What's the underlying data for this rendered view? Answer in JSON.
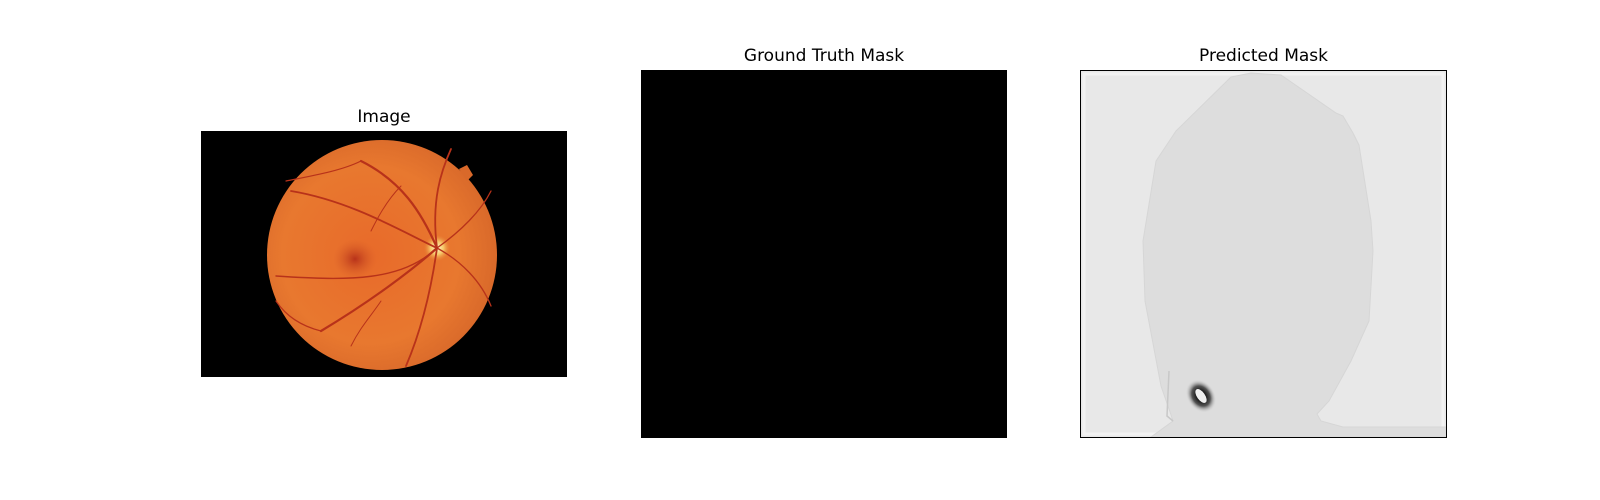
{
  "figure": {
    "panels": [
      {
        "title": "Image"
      },
      {
        "title": "Ground Truth Mask"
      },
      {
        "title": "Predicted Mask"
      }
    ]
  },
  "colors": {
    "background": "#ffffff",
    "mask_black": "#000000",
    "prediction_background": "#e8e8e8",
    "prediction_region": "#dddddd",
    "fundus_orange": "#e8702e",
    "vessel_red": "#b8321a"
  }
}
